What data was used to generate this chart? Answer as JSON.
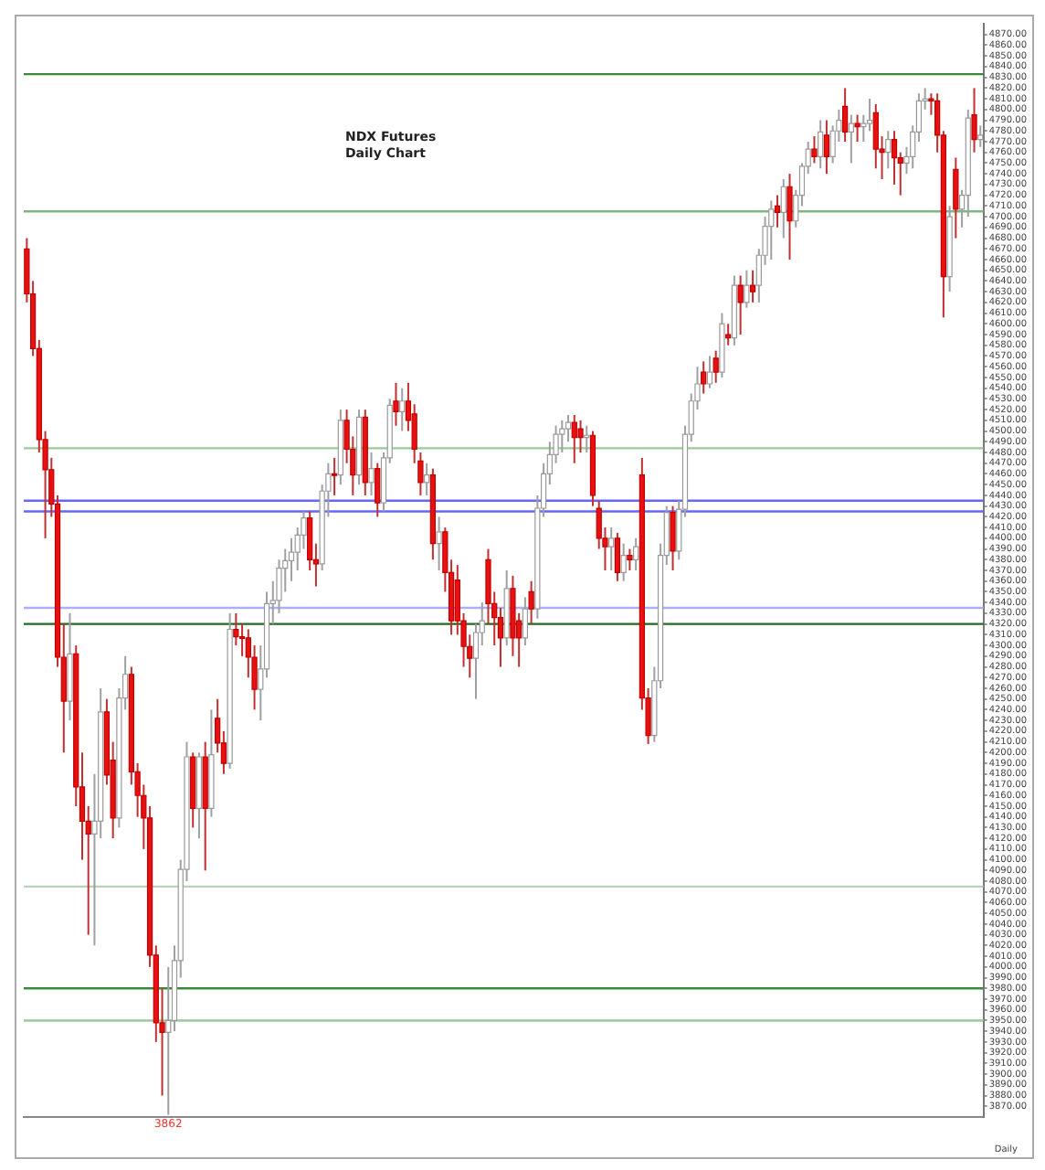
{
  "chart_data": {
    "type": "candlestick",
    "title": "NDX  Futures",
    "subtitle": "Daily Chart",
    "categories": [
      null,
      null,
      null,
      null,
      null,
      null,
      null,
      null,
      null,
      null,
      null,
      null,
      null,
      null,
      null,
      null,
      null,
      null,
      null,
      null,
      null,
      null,
      null,
      null,
      null,
      null,
      null,
      null,
      null,
      null,
      null,
      null,
      null,
      null,
      null,
      null,
      null,
      null,
      null,
      null,
      null,
      null,
      null,
      null,
      null,
      null,
      null,
      null,
      null,
      null,
      null,
      null,
      null,
      null,
      null,
      null,
      null,
      null,
      null,
      null,
      null,
      null,
      null,
      null,
      null,
      null,
      null,
      null,
      null,
      null,
      null,
      null,
      null,
      null,
      null,
      null,
      null,
      null,
      null,
      null,
      null,
      null,
      null,
      null,
      null,
      null,
      null,
      null,
      null,
      null,
      null,
      null,
      null,
      null,
      null,
      null,
      null,
      null,
      null,
      null,
      null,
      null,
      null,
      null,
      null,
      null,
      null,
      null,
      null,
      null,
      null,
      null,
      null,
      null,
      null,
      null,
      null,
      null,
      null,
      null,
      null,
      null,
      null,
      null,
      null,
      null,
      null,
      null,
      null,
      null,
      null,
      null,
      null,
      null,
      null,
      null,
      null,
      null,
      null,
      null,
      null,
      null,
      null,
      null,
      null,
      null,
      null,
      null,
      null,
      null,
      null,
      null,
      null,
      null,
      null,
      null
    ],
    "ohlc": [
      [
        4670,
        4680,
        4620,
        4628
      ],
      [
        4628,
        4640,
        4570,
        4577
      ],
      [
        4577,
        4585,
        4480,
        4492
      ],
      [
        4492,
        4500,
        4400,
        4464
      ],
      [
        4464,
        4475,
        4420,
        4432
      ],
      [
        4432,
        4440,
        4280,
        4289
      ],
      [
        4289,
        4320,
        4200,
        4248
      ],
      [
        4248,
        4330,
        4230,
        4292
      ],
      [
        4292,
        4300,
        4150,
        4168
      ],
      [
        4168,
        4200,
        4100,
        4136
      ],
      [
        4136,
        4150,
        4030,
        4124
      ],
      [
        4124,
        4180,
        4020,
        4136
      ],
      [
        4136,
        4260,
        4120,
        4238
      ],
      [
        4238,
        4250,
        4170,
        4179
      ],
      [
        4193,
        4210,
        4120,
        4139
      ],
      [
        4139,
        4260,
        4130,
        4251
      ],
      [
        4251,
        4290,
        4240,
        4273
      ],
      [
        4273,
        4280,
        4170,
        4182
      ],
      [
        4182,
        4190,
        4140,
        4160
      ],
      [
        4160,
        4170,
        4110,
        4139
      ],
      [
        4139,
        4150,
        4000,
        4011
      ],
      [
        4011,
        4020,
        3930,
        3948
      ],
      [
        3948,
        3980,
        3880,
        3939
      ],
      [
        3939,
        4000,
        3862,
        3950
      ],
      [
        3950,
        4020,
        3940,
        4006
      ],
      [
        4006,
        4100,
        3990,
        4091
      ],
      [
        4091,
        4210,
        4080,
        4196
      ],
      [
        4196,
        4200,
        4130,
        4148
      ],
      [
        4148,
        4200,
        4120,
        4196
      ],
      [
        4196,
        4210,
        4090,
        4148
      ],
      [
        4148,
        4240,
        4140,
        4198
      ],
      [
        4232,
        4250,
        4200,
        4209
      ],
      [
        4209,
        4220,
        4180,
        4190
      ],
      [
        4190,
        4330,
        4185,
        4315
      ],
      [
        4315,
        4330,
        4300,
        4308
      ],
      [
        4308,
        4320,
        4290,
        4307
      ],
      [
        4307,
        4315,
        4270,
        4289
      ],
      [
        4289,
        4300,
        4240,
        4259
      ],
      [
        4259,
        4300,
        4230,
        4278
      ],
      [
        4278,
        4350,
        4270,
        4339
      ],
      [
        4339,
        4360,
        4320,
        4342
      ],
      [
        4342,
        4380,
        4330,
        4372
      ],
      [
        4372,
        4390,
        4350,
        4379
      ],
      [
        4379,
        4400,
        4360,
        4387
      ],
      [
        4387,
        4410,
        4370,
        4403
      ],
      [
        4403,
        4425,
        4390,
        4419
      ],
      [
        4419,
        4425,
        4370,
        4380
      ],
      [
        4380,
        4395,
        4355,
        4376
      ],
      [
        4376,
        4450,
        4370,
        4444
      ],
      [
        4444,
        4470,
        4420,
        4460
      ],
      [
        4460,
        4475,
        4440,
        4459
      ],
      [
        4459,
        4520,
        4450,
        4510
      ],
      [
        4510,
        4520,
        4470,
        4483
      ],
      [
        4483,
        4495,
        4440,
        4459
      ],
      [
        4459,
        4520,
        4450,
        4513
      ],
      [
        4513,
        4520,
        4440,
        4452
      ],
      [
        4452,
        4480,
        4440,
        4465
      ],
      [
        4465,
        4470,
        4420,
        4433
      ],
      [
        4433,
        4480,
        4425,
        4475
      ],
      [
        4475,
        4530,
        4470,
        4524
      ],
      [
        4528,
        4545,
        4505,
        4518
      ],
      [
        4518,
        4540,
        4500,
        4528
      ],
      [
        4528,
        4545,
        4500,
        4510
      ],
      [
        4516,
        4525,
        4470,
        4483
      ],
      [
        4472,
        4480,
        4440,
        4452
      ],
      [
        4452,
        4470,
        4440,
        4459
      ],
      [
        4459,
        4465,
        4380,
        4395
      ],
      [
        4395,
        4420,
        4370,
        4406
      ],
      [
        4406,
        4410,
        4350,
        4368
      ],
      [
        4368,
        4380,
        4310,
        4323
      ],
      [
        4361,
        4375,
        4310,
        4323
      ],
      [
        4323,
        4330,
        4280,
        4299
      ],
      [
        4299,
        4310,
        4270,
        4288
      ],
      [
        4288,
        4320,
        4250,
        4312
      ],
      [
        4312,
        4340,
        4300,
        4323
      ],
      [
        4380,
        4390,
        4320,
        4339
      ],
      [
        4339,
        4350,
        4300,
        4326
      ],
      [
        4326,
        4335,
        4280,
        4307
      ],
      [
        4307,
        4370,
        4300,
        4353
      ],
      [
        4353,
        4365,
        4290,
        4307
      ],
      [
        4323,
        4330,
        4280,
        4307
      ],
      [
        4307,
        4345,
        4300,
        4334
      ],
      [
        4350,
        4360,
        4320,
        4334
      ],
      [
        4334,
        4440,
        4325,
        4428
      ],
      [
        4428,
        4470,
        4420,
        4460
      ],
      [
        4460,
        4490,
        4450,
        4478
      ],
      [
        4478,
        4505,
        4470,
        4497
      ],
      [
        4497,
        4510,
        4480,
        4502
      ],
      [
        4502,
        4515,
        4490,
        4508
      ],
      [
        4508,
        4515,
        4470,
        4494
      ],
      [
        4502,
        4510,
        4480,
        4494
      ],
      [
        4494,
        4505,
        4480,
        4496
      ],
      [
        4496,
        4500,
        4430,
        4440
      ],
      [
        4428,
        4435,
        4390,
        4400
      ],
      [
        4400,
        4410,
        4370,
        4392
      ],
      [
        4392,
        4410,
        4370,
        4400
      ],
      [
        4400,
        4405,
        4360,
        4368
      ],
      [
        4368,
        4395,
        4360,
        4384
      ],
      [
        4384,
        4390,
        4370,
        4380
      ],
      [
        4380,
        4400,
        4370,
        4392
      ],
      [
        4459,
        4475,
        4240,
        4251
      ],
      [
        4251,
        4260,
        4208,
        4216
      ],
      [
        4216,
        4280,
        4210,
        4267
      ],
      [
        4267,
        4395,
        4260,
        4384
      ],
      [
        4384,
        4430,
        4375,
        4424
      ],
      [
        4424,
        4430,
        4370,
        4388
      ],
      [
        4388,
        4435,
        4380,
        4427
      ],
      [
        4427,
        4505,
        4420,
        4497
      ],
      [
        4497,
        4535,
        4490,
        4528
      ],
      [
        4528,
        4560,
        4520,
        4544
      ],
      [
        4555,
        4565,
        4535,
        4544
      ],
      [
        4544,
        4570,
        4540,
        4555
      ],
      [
        4568,
        4575,
        4545,
        4555
      ],
      [
        4555,
        4610,
        4550,
        4600
      ],
      [
        4590,
        4600,
        4580,
        4587
      ],
      [
        4587,
        4645,
        4580,
        4636
      ],
      [
        4636,
        4645,
        4590,
        4620
      ],
      [
        4620,
        4650,
        4615,
        4636
      ],
      [
        4636,
        4650,
        4620,
        4630
      ],
      [
        4636,
        4670,
        4620,
        4664
      ],
      [
        4664,
        4700,
        4655,
        4691
      ],
      [
        4691,
        4715,
        4660,
        4707
      ],
      [
        4710,
        4720,
        4690,
        4704
      ],
      [
        4704,
        4735,
        4680,
        4728
      ],
      [
        4728,
        4740,
        4660,
        4696
      ],
      [
        4696,
        4725,
        4690,
        4720
      ],
      [
        4720,
        4750,
        4710,
        4747
      ],
      [
        4747,
        4770,
        4740,
        4763
      ],
      [
        4763,
        4775,
        4750,
        4756
      ],
      [
        4756,
        4790,
        4745,
        4779
      ],
      [
        4776,
        4790,
        4740,
        4756
      ],
      [
        4756,
        4785,
        4750,
        4780
      ],
      [
        4780,
        4800,
        4770,
        4790
      ],
      [
        4803,
        4820,
        4770,
        4779
      ],
      [
        4779,
        4795,
        4750,
        4787
      ],
      [
        4787,
        4795,
        4770,
        4784
      ],
      [
        4784,
        4795,
        4770,
        4787
      ],
      [
        4787,
        4810,
        4780,
        4790
      ],
      [
        4797,
        4805,
        4745,
        4763
      ],
      [
        4763,
        4775,
        4735,
        4760
      ],
      [
        4760,
        4780,
        4745,
        4772
      ],
      [
        4772,
        4780,
        4730,
        4755
      ],
      [
        4755,
        4760,
        4720,
        4750
      ],
      [
        4750,
        4765,
        4740,
        4756
      ],
      [
        4756,
        4785,
        4745,
        4779
      ],
      [
        4779,
        4815,
        4770,
        4808
      ],
      [
        4808,
        4820,
        4800,
        4810
      ],
      [
        4810,
        4815,
        4795,
        4808
      ],
      [
        4808,
        4815,
        4760,
        4776
      ],
      [
        4776,
        4780,
        4606,
        4644
      ],
      [
        4644,
        4710,
        4630,
        4700
      ],
      [
        4744,
        4755,
        4680,
        4707
      ],
      [
        4707,
        4725,
        4690,
        4720
      ],
      [
        4720,
        4800,
        4700,
        4792
      ],
      [
        4795,
        4820,
        4760,
        4772
      ],
      [
        4772,
        4785,
        4765,
        4776
      ]
    ],
    "ylim": [
      3860,
      4880
    ],
    "yticks": [
      {
        "value": 3870,
        "label": "3870.00"
      },
      {
        "value": 3880,
        "label": "3880.00"
      },
      {
        "value": 3890,
        "label": "3890.00"
      },
      {
        "value": 3900,
        "label": "3900.00"
      },
      {
        "value": 3910,
        "label": "3910.00"
      },
      {
        "value": 3920,
        "label": "3920.00"
      },
      {
        "value": 3930,
        "label": "3930.00"
      },
      {
        "value": 3940,
        "label": "3940.00"
      },
      {
        "value": 3950,
        "label": "3950.00"
      },
      {
        "value": 3960,
        "label": "3960.00"
      },
      {
        "value": 3970,
        "label": "3970.00"
      },
      {
        "value": 3980,
        "label": "3980.00"
      },
      {
        "value": 3990,
        "label": "3990.00"
      },
      {
        "value": 4000,
        "label": "4000.00"
      },
      {
        "value": 4010,
        "label": "4010.00"
      },
      {
        "value": 4020,
        "label": "4020.00"
      },
      {
        "value": 4030,
        "label": "4030.00"
      },
      {
        "value": 4040,
        "label": "4040.00"
      },
      {
        "value": 4050,
        "label": "4050.00"
      },
      {
        "value": 4060,
        "label": "4060.00"
      },
      {
        "value": 4070,
        "label": "4070.00"
      },
      {
        "value": 4080,
        "label": "4080.00"
      },
      {
        "value": 4090,
        "label": "4090.00"
      },
      {
        "value": 4100,
        "label": "4100.00"
      },
      {
        "value": 4110,
        "label": "4110.00"
      },
      {
        "value": 4120,
        "label": "4120.00"
      },
      {
        "value": 4130,
        "label": "4130.00"
      },
      {
        "value": 4140,
        "label": "4140.00"
      },
      {
        "value": 4150,
        "label": "4150.00"
      },
      {
        "value": 4160,
        "label": "4160.00"
      },
      {
        "value": 4170,
        "label": "4170.00"
      },
      {
        "value": 4180,
        "label": "4180.00"
      },
      {
        "value": 4190,
        "label": "4190.00"
      },
      {
        "value": 4200,
        "label": "4200.00"
      },
      {
        "value": 4210,
        "label": "4210.00"
      },
      {
        "value": 4220,
        "label": "4220.00"
      },
      {
        "value": 4230,
        "label": "4230.00"
      },
      {
        "value": 4240,
        "label": "4240.00"
      },
      {
        "value": 4250,
        "label": "4250.00"
      },
      {
        "value": 4260,
        "label": "4260.00"
      },
      {
        "value": 4270,
        "label": "4270.00"
      },
      {
        "value": 4280,
        "label": "4280.00"
      },
      {
        "value": 4290,
        "label": "4290.00"
      },
      {
        "value": 4300,
        "label": "4300.00"
      },
      {
        "value": 4310,
        "label": "4310.00"
      },
      {
        "value": 4320,
        "label": "4320.00"
      },
      {
        "value": 4330,
        "label": "4330.00"
      },
      {
        "value": 4340,
        "label": "4340.00"
      },
      {
        "value": 4350,
        "label": "4350.00"
      },
      {
        "value": 4360,
        "label": "4360.00"
      },
      {
        "value": 4370,
        "label": "4370.00"
      },
      {
        "value": 4380,
        "label": "4380.00"
      },
      {
        "value": 4390,
        "label": "4390.00"
      },
      {
        "value": 4400,
        "label": "4400.00"
      },
      {
        "value": 4410,
        "label": "4410.00"
      },
      {
        "value": 4420,
        "label": "4420.00"
      },
      {
        "value": 4430,
        "label": "4430.00"
      },
      {
        "value": 4440,
        "label": "4440.00"
      },
      {
        "value": 4450,
        "label": "4450.00"
      },
      {
        "value": 4460,
        "label": "4460.00"
      },
      {
        "value": 4470,
        "label": "4470.00"
      },
      {
        "value": 4480,
        "label": "4480.00"
      },
      {
        "value": 4490,
        "label": "4490.00"
      },
      {
        "value": 4500,
        "label": "4500.00"
      },
      {
        "value": 4510,
        "label": "4510.00"
      },
      {
        "value": 4520,
        "label": "4520.00"
      },
      {
        "value": 4530,
        "label": "4530.00"
      },
      {
        "value": 4540,
        "label": "4540.00"
      },
      {
        "value": 4550,
        "label": "4550.00"
      },
      {
        "value": 4560,
        "label": "4560.00"
      },
      {
        "value": 4570,
        "label": "4570.00"
      },
      {
        "value": 4580,
        "label": "4580.00"
      },
      {
        "value": 4590,
        "label": "4590.00"
      },
      {
        "value": 4600,
        "label": "4600.00"
      },
      {
        "value": 4610,
        "label": "4610.00"
      },
      {
        "value": 4620,
        "label": "4620.00"
      },
      {
        "value": 4630,
        "label": "4630.00"
      },
      {
        "value": 4640,
        "label": "4640.00"
      },
      {
        "value": 4650,
        "label": "4650.00"
      },
      {
        "value": 4660,
        "label": "4660.00"
      },
      {
        "value": 4670,
        "label": "4670.00"
      },
      {
        "value": 4680,
        "label": "4680.00"
      },
      {
        "value": 4690,
        "label": "4690.00"
      },
      {
        "value": 4700,
        "label": "4700.00"
      },
      {
        "value": 4710,
        "label": "4710.00"
      },
      {
        "value": 4720,
        "label": "4720.00"
      },
      {
        "value": 4730,
        "label": "4730.00"
      },
      {
        "value": 4740,
        "label": "4740.00"
      },
      {
        "value": 4750,
        "label": "4750.00"
      },
      {
        "value": 4760,
        "label": "4760.00"
      },
      {
        "value": 4770,
        "label": "4770.00"
      },
      {
        "value": 4780,
        "label": "4780.00"
      },
      {
        "value": 4790,
        "label": "4790.00"
      },
      {
        "value": 4800,
        "label": "4800.00"
      },
      {
        "value": 4810,
        "label": "4810.00"
      },
      {
        "value": 4820,
        "label": "4820.00"
      },
      {
        "value": 4830,
        "label": "4830.00"
      },
      {
        "value": 4840,
        "label": "4840.00"
      },
      {
        "value": 4850,
        "label": "4850.00"
      },
      {
        "value": 4860,
        "label": "4860.00"
      },
      {
        "value": 4870,
        "label": "4870.00"
      }
    ],
    "ref_lines": [
      {
        "axis": "y",
        "value": 4833,
        "color": "#3a8a3a"
      },
      {
        "axis": "y",
        "value": 4705,
        "color": "#7fb87f"
      },
      {
        "axis": "y",
        "value": 4484,
        "color": "#9cc89c"
      },
      {
        "axis": "y",
        "value": 4435,
        "color": "#6666ff"
      },
      {
        "axis": "y",
        "value": 4425,
        "color": "#6666ff"
      },
      {
        "axis": "y",
        "value": 4335,
        "color": "#aab0ff"
      },
      {
        "axis": "y",
        "value": 4320,
        "color": "#1f6b1f"
      },
      {
        "axis": "y",
        "value": 4075,
        "color": "#b9d3b9"
      },
      {
        "axis": "y",
        "value": 3980,
        "color": "#3a8a3a"
      },
      {
        "axis": "y",
        "value": 3950,
        "color": "#9cc89c"
      }
    ],
    "annotations": [
      {
        "text": "3862",
        "y": 3862
      },
      "Daily"
    ],
    "grid": false,
    "legend": false,
    "tick_labels": "y"
  }
}
